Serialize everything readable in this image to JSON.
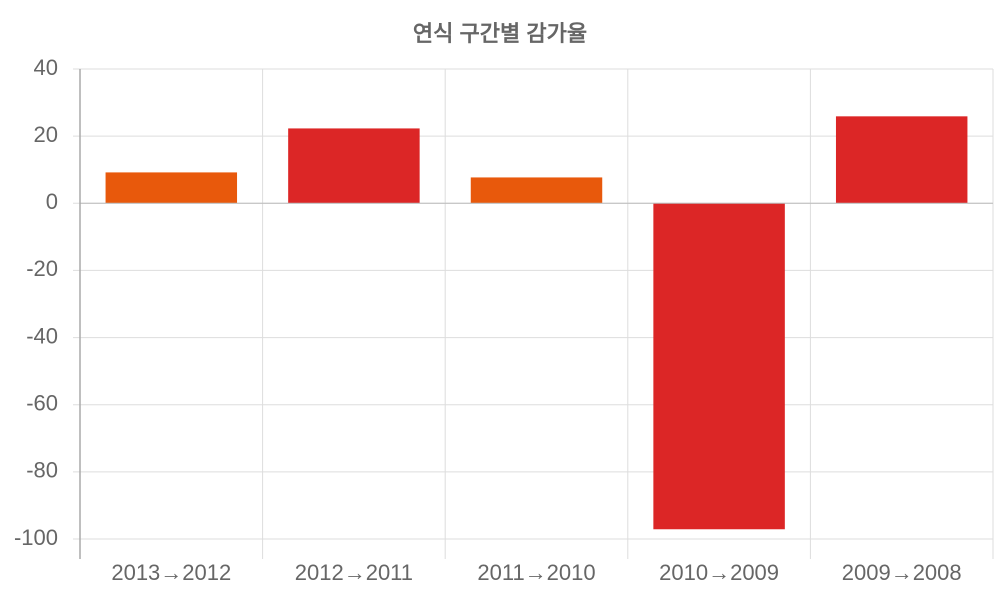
{
  "chart_data": {
    "type": "bar",
    "title": "연식 구간별 감가율",
    "categories": [
      "2013→2012",
      "2012→2011",
      "2011→2010",
      "2010→2009",
      "2009→2008"
    ],
    "values": [
      9.2,
      22.3,
      7.7,
      -97.1,
      25.9
    ],
    "colors": [
      "#e8590c",
      "#dc2626",
      "#e8590c",
      "#dc2626",
      "#dc2626"
    ],
    "ylim": [
      -100,
      40
    ],
    "yticks": [
      -100,
      -80,
      -60,
      -40,
      -20,
      0,
      20,
      40
    ],
    "grid": true
  }
}
